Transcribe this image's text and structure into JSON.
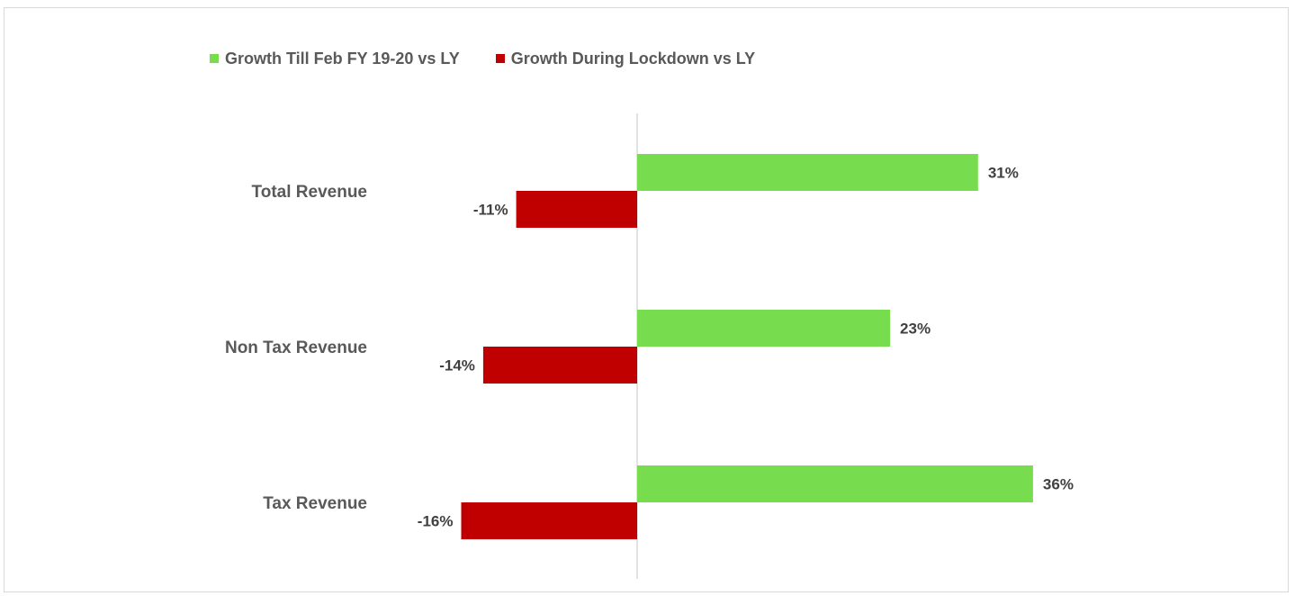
{
  "chart_data": {
    "type": "bar",
    "orientation": "horizontal",
    "categories": [
      "Total Revenue",
      "Non Tax Revenue",
      "Tax Revenue"
    ],
    "series": [
      {
        "name": "Growth Till Feb FY 19-20 vs LY",
        "values": [
          31,
          23,
          36
        ],
        "labels": [
          "31%",
          "23%",
          "36%"
        ],
        "color": "#77dd4f"
      },
      {
        "name": "Growth During Lockdown vs LY",
        "values": [
          -11,
          -14,
          -16
        ],
        "labels": [
          "-11%",
          "-14%",
          "-16%"
        ],
        "color": "#c00000"
      }
    ],
    "value_unit": "%",
    "xlim": [
      -20,
      40
    ],
    "title": "",
    "xlabel": "",
    "ylabel": "",
    "grid": false,
    "legend": "top-left"
  }
}
